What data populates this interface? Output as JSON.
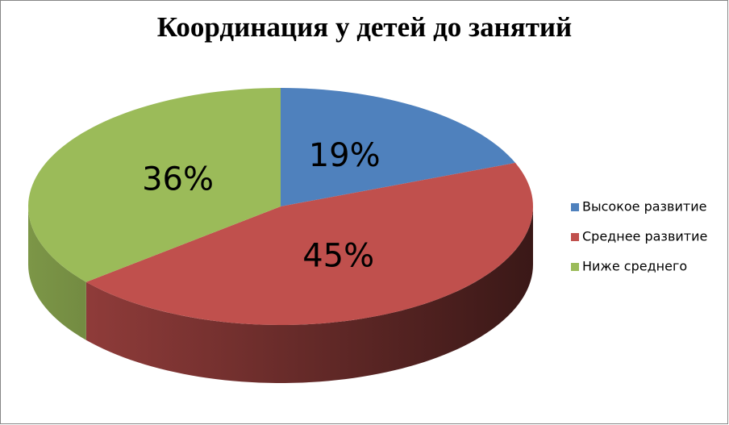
{
  "chart_data": {
    "type": "pie",
    "title": "Координация у детей до занятий",
    "categories": [
      "Высокое развитие",
      "Среднее развитие",
      "Ниже среднего"
    ],
    "values": [
      19,
      45,
      36
    ],
    "value_labels": [
      "19%",
      "45%",
      "36%"
    ],
    "colors": [
      "#4f81bd",
      "#c0504d",
      "#9bbb59"
    ],
    "legend": "right"
  }
}
